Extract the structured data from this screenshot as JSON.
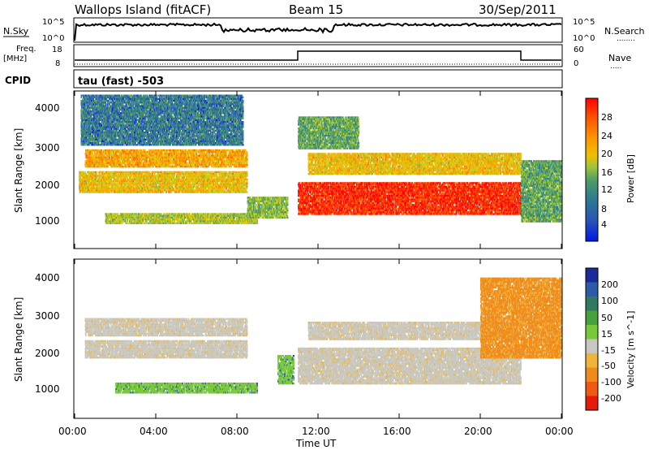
{
  "header": {
    "station": "Wallops Island (fitACF)",
    "beam": "Beam 15",
    "date": "30/Sep/2011"
  },
  "strip_nsky": {
    "label": "N.Sky",
    "left_ticks": [
      "10^5",
      "10^0"
    ],
    "right_ticks": [
      "10^5",
      "10^0"
    ],
    "right_label": "N.Search",
    "right_dots": "........"
  },
  "strip_freq": {
    "label_line1": "Freq.",
    "label_line2": "[MHz]",
    "left_ticks": [
      "18",
      "8"
    ],
    "right_ticks": [
      "60",
      "0"
    ],
    "right_label": "Nave",
    "right_dots": "....."
  },
  "cpid": {
    "label": "CPID",
    "value": "tau (fast) -503"
  },
  "x_axis": {
    "label": "Time UT",
    "ticks": [
      "00:00",
      "04:00",
      "08:00",
      "12:00",
      "16:00",
      "20:00",
      "00:00"
    ]
  },
  "y_axis": {
    "label": "Slant Range [km]",
    "ticks": [
      "1000",
      "2000",
      "3000",
      "4000"
    ]
  },
  "colorbars": {
    "power": {
      "label": "Power [dB]",
      "ticks": [
        "4",
        "8",
        "12",
        "16",
        "20",
        "24",
        "28"
      ],
      "colors": [
        "#0018e8",
        "#2a56b6",
        "#2c7d8e",
        "#4b9a6a",
        "#7eb83a",
        "#c4d21a",
        "#f0c000",
        "#ff9a00",
        "#ff6a00",
        "#ff3a00",
        "#ff0000"
      ]
    },
    "velocity": {
      "label": "Velocity [m s^-1]",
      "ticks": [
        "200",
        "100",
        "50",
        "15",
        "-15",
        "-50",
        "-100",
        "-200"
      ],
      "colors": [
        "#1a2a9a",
        "#2e5aa8",
        "#2f7a60",
        "#46a23a",
        "#78c83a",
        "#c8c8c0",
        "#f0b43a",
        "#f08a1a",
        "#f05a10",
        "#e81a0a"
      ]
    }
  },
  "chart_data": {
    "type": "heatmap",
    "title": "Wallops Island (fitACF)",
    "subtitle": "Beam 15",
    "date": "30/Sep/2011",
    "xlabel": "Time UT",
    "ylabel": "Slant Range [km]",
    "xlim_hours": [
      0,
      24
    ],
    "ylim_km": [
      180,
      4500
    ],
    "x_ticks": [
      "00:00",
      "04:00",
      "08:00",
      "12:00",
      "16:00",
      "20:00",
      "00:00"
    ],
    "y_ticks": [
      1000,
      2000,
      3000,
      4000
    ],
    "freq_mhz": [
      {
        "start_h": 0,
        "end_h": 11,
        "value": 10
      },
      {
        "start_h": 11,
        "end_h": 22,
        "value": 15
      },
      {
        "start_h": 22,
        "end_h": 24,
        "value": 10
      }
    ],
    "power_bands": [
      {
        "t0": 1.5,
        "t1": 9,
        "r0": 850,
        "r1": 1150,
        "dB": 14
      },
      {
        "t0": 8.5,
        "t1": 10.5,
        "r0": 1000,
        "r1": 1600,
        "dB": 12
      },
      {
        "t0": 0.2,
        "t1": 8.5,
        "r0": 1700,
        "r1": 2300,
        "dB": 18
      },
      {
        "t0": 0.5,
        "t1": 8.5,
        "r0": 2400,
        "r1": 2900,
        "dB": 20
      },
      {
        "t0": 0.3,
        "t1": 8.3,
        "r0": 3000,
        "r1": 4400,
        "dB": 6
      },
      {
        "t0": 11,
        "t1": 22,
        "r0": 1100,
        "r1": 2000,
        "dB": 28
      },
      {
        "t0": 11.5,
        "t1": 22,
        "r0": 2200,
        "r1": 2800,
        "dB": 18
      },
      {
        "t0": 11,
        "t1": 14,
        "r0": 2900,
        "r1": 3800,
        "dB": 10
      },
      {
        "t0": 22,
        "t1": 24,
        "r0": 900,
        "r1": 2600,
        "dB": 10
      }
    ],
    "velocity_bands": [
      {
        "t0": 2,
        "t1": 9,
        "r0": 850,
        "r1": 1150,
        "v": 60
      },
      {
        "t0": 10,
        "t1": 10.8,
        "r0": 1100,
        "r1": 1900,
        "v": 60
      },
      {
        "t0": 0.5,
        "t1": 8.5,
        "r0": 1800,
        "r1": 2300,
        "v": 0
      },
      {
        "t0": 0.5,
        "t1": 8.5,
        "r0": 2400,
        "r1": 2900,
        "v": 0
      },
      {
        "t0": 11,
        "t1": 22,
        "r0": 1100,
        "r1": 2100,
        "v": 0
      },
      {
        "t0": 11.5,
        "t1": 22,
        "r0": 2300,
        "r1": 2800,
        "v": 0
      },
      {
        "t0": 20,
        "t1": 24,
        "r0": 1800,
        "r1": 4000,
        "v": -60
      }
    ]
  }
}
